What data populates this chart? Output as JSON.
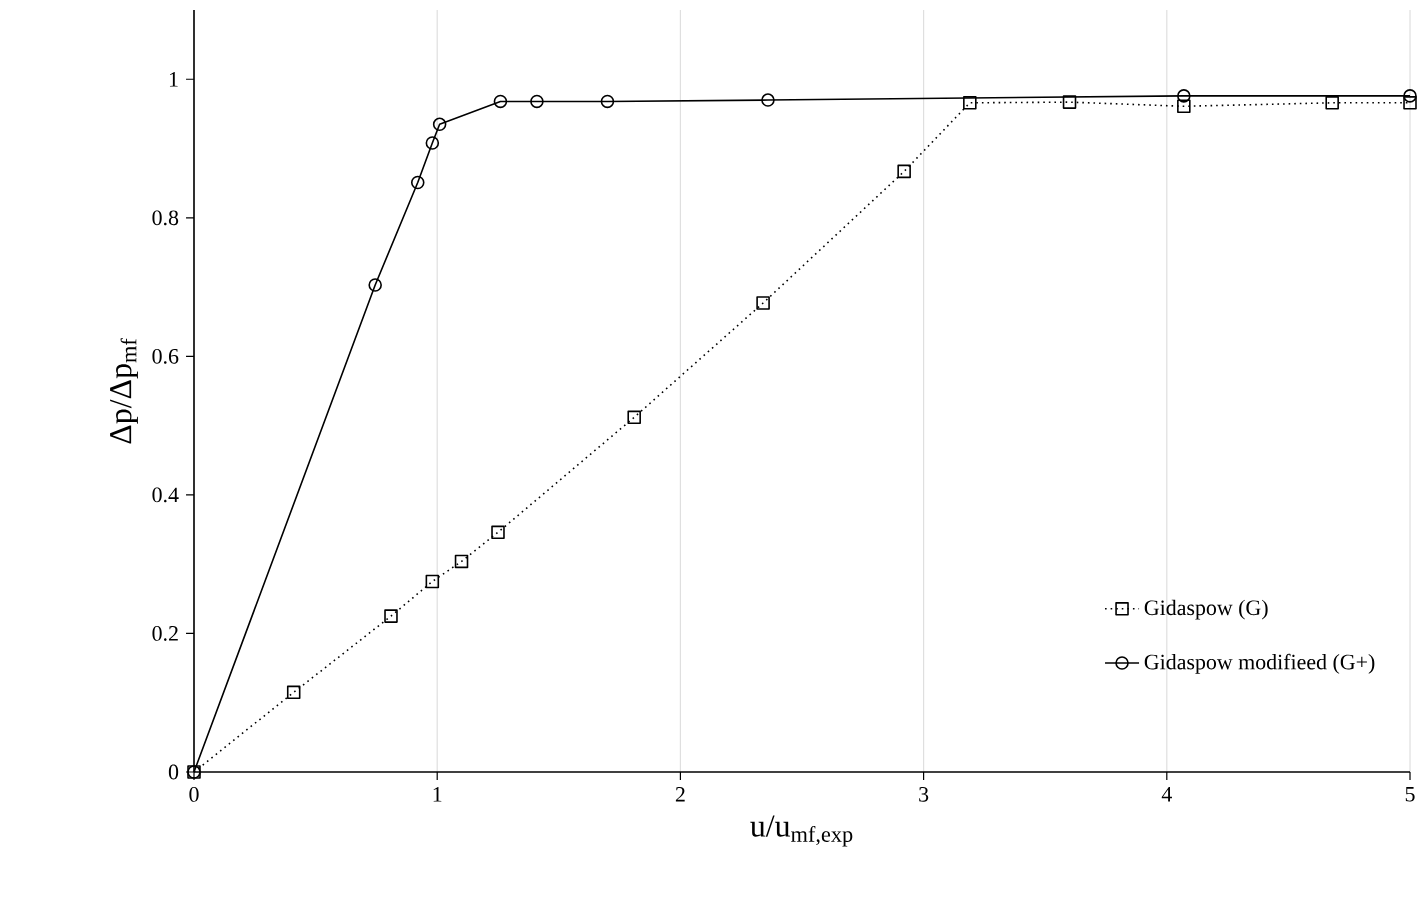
{
  "chart_data": {
    "type": "line",
    "xlabel": "u/u$_{mf,exp}$",
    "ylabel": "Δp/Δp$_{mf}$",
    "xlim": [
      0,
      5
    ],
    "ylim": [
      0,
      1.1
    ],
    "xticks": [
      0,
      1,
      2,
      3,
      4,
      5
    ],
    "yticks": [
      0,
      0.2,
      0.4,
      0.6,
      0.8,
      1
    ],
    "grid": "x",
    "legend": "bottom right",
    "series": [
      {
        "name": "Gidaspow (G)",
        "color": "#000000",
        "marker": "square",
        "line_style": "dotted",
        "x": [
          0,
          0.41,
          0.81,
          0.98,
          1.1,
          1.25,
          1.81,
          2.34,
          2.92,
          3.19,
          3.6,
          4.07,
          4.68,
          5.0
        ],
        "values": [
          0,
          0.115,
          0.225,
          0.275,
          0.304,
          0.346,
          0.512,
          0.677,
          0.867,
          0.966,
          0.967,
          0.961,
          0.966,
          0.966
        ]
      },
      {
        "name": "Gidaspow modifieed (G+)",
        "color": "#000000",
        "marker": "circle",
        "line_style": "solid",
        "x": [
          0,
          0.745,
          0.92,
          0.98,
          1.01,
          1.26,
          1.41,
          1.7,
          2.36,
          3.19,
          4.07,
          5.0
        ],
        "values": [
          0,
          0.703,
          0.851,
          0.908,
          0.935,
          0.968,
          0.968,
          0.968,
          0.97,
          null,
          0.976,
          0.976
        ]
      }
    ]
  }
}
